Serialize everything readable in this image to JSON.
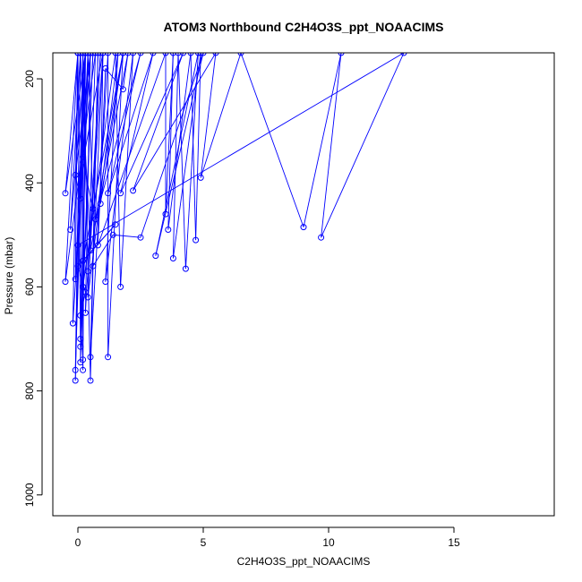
{
  "chart_data": {
    "type": "line",
    "title": "ATOM3 Northbound C2H4O3S_ppt_NOAACIMS",
    "xlabel": "C2H4O3S_ppt_NOAACIMS",
    "ylabel": "Pressure (mbar)",
    "xlim": [
      -1.0,
      19.0
    ],
    "ylim": [
      1040,
      150
    ],
    "y_reversed": true,
    "grid": false,
    "legend": "none",
    "color": "#0000ff",
    "marker": "open-circle",
    "x_ticks": [
      "0",
      "5",
      "10",
      "15"
    ],
    "y_ticks": [
      "200",
      "400",
      "600",
      "800",
      "1000"
    ],
    "series": [
      {
        "points": [
          [
            0.0,
            150
          ],
          [
            -0.5,
            420
          ],
          [
            0.3,
            150
          ],
          [
            0.1,
            430
          ],
          [
            -0.1,
            385
          ],
          [
            0.5,
            150
          ],
          [
            0.2,
            350
          ],
          [
            0.4,
            150
          ],
          [
            0.6,
            450
          ],
          [
            0.2,
            360
          ],
          [
            1.0,
            150
          ],
          [
            0.9,
            440
          ],
          [
            1.8,
            150
          ],
          [
            0.7,
            470
          ],
          [
            2.5,
            150
          ],
          [
            1.2,
            420
          ],
          [
            3.0,
            150
          ],
          [
            1.7,
            420
          ],
          [
            4.2,
            150
          ],
          [
            2.2,
            415
          ],
          [
            5.5,
            150
          ],
          [
            4.9,
            390
          ],
          [
            6.5,
            150
          ],
          [
            9.0,
            485
          ],
          [
            10.5,
            150
          ],
          [
            9.7,
            505
          ],
          [
            13.0,
            150
          ],
          [
            0.0,
            520
          ],
          [
            0.3,
            150
          ],
          [
            -0.3,
            490
          ],
          [
            0.1,
            150
          ],
          [
            0.5,
            530
          ],
          [
            2.0,
            150
          ],
          [
            1.8,
            220
          ],
          [
            1.1,
            180
          ],
          [
            0.8,
            520
          ],
          [
            3.5,
            150
          ],
          [
            3.5,
            460
          ],
          [
            3.8,
            150
          ],
          [
            3.6,
            490
          ],
          [
            4.5,
            150
          ],
          [
            4.7,
            510
          ],
          [
            4.9,
            150
          ],
          [
            3.8,
            545
          ],
          [
            4.0,
            150
          ],
          [
            4.3,
            565
          ],
          [
            4.8,
            150
          ],
          [
            3.1,
            540
          ],
          [
            5.0,
            150
          ],
          [
            2.5,
            505
          ],
          [
            1.4,
            500
          ],
          [
            0.6,
            560
          ],
          [
            1.0,
            150
          ],
          [
            0.4,
            570
          ],
          [
            0.7,
            150
          ],
          [
            -0.5,
            590
          ],
          [
            0.0,
            150
          ],
          [
            -0.1,
            585
          ],
          [
            0.3,
            150
          ],
          [
            0.2,
            600
          ],
          [
            1.5,
            150
          ],
          [
            1.7,
            600
          ],
          [
            2.2,
            150
          ],
          [
            1.1,
            590
          ],
          [
            1.6,
            150
          ],
          [
            0.4,
            620
          ],
          [
            0.9,
            150
          ],
          [
            0.3,
            650
          ],
          [
            0.5,
            150
          ],
          [
            -0.2,
            670
          ],
          [
            0.0,
            150
          ],
          [
            0.1,
            700
          ],
          [
            0.4,
            150
          ],
          [
            0.1,
            715
          ],
          [
            0.6,
            150
          ],
          [
            0.1,
            745
          ],
          [
            0.2,
            150
          ],
          [
            0.2,
            760
          ],
          [
            0.3,
            150
          ],
          [
            -0.1,
            760
          ],
          [
            0.1,
            150
          ],
          [
            -0.1,
            780
          ],
          [
            0.2,
            150
          ],
          [
            0.5,
            780
          ],
          [
            0.8,
            150
          ],
          [
            0.5,
            735
          ],
          [
            1.2,
            150
          ],
          [
            1.2,
            735
          ],
          [
            1.8,
            150
          ],
          [
            0.2,
            550
          ],
          [
            1.5,
            480
          ],
          [
            0.0,
            560
          ],
          [
            0.3,
            610
          ],
          [
            0.1,
            655
          ],
          [
            0.2,
            740
          ]
        ]
      }
    ]
  }
}
